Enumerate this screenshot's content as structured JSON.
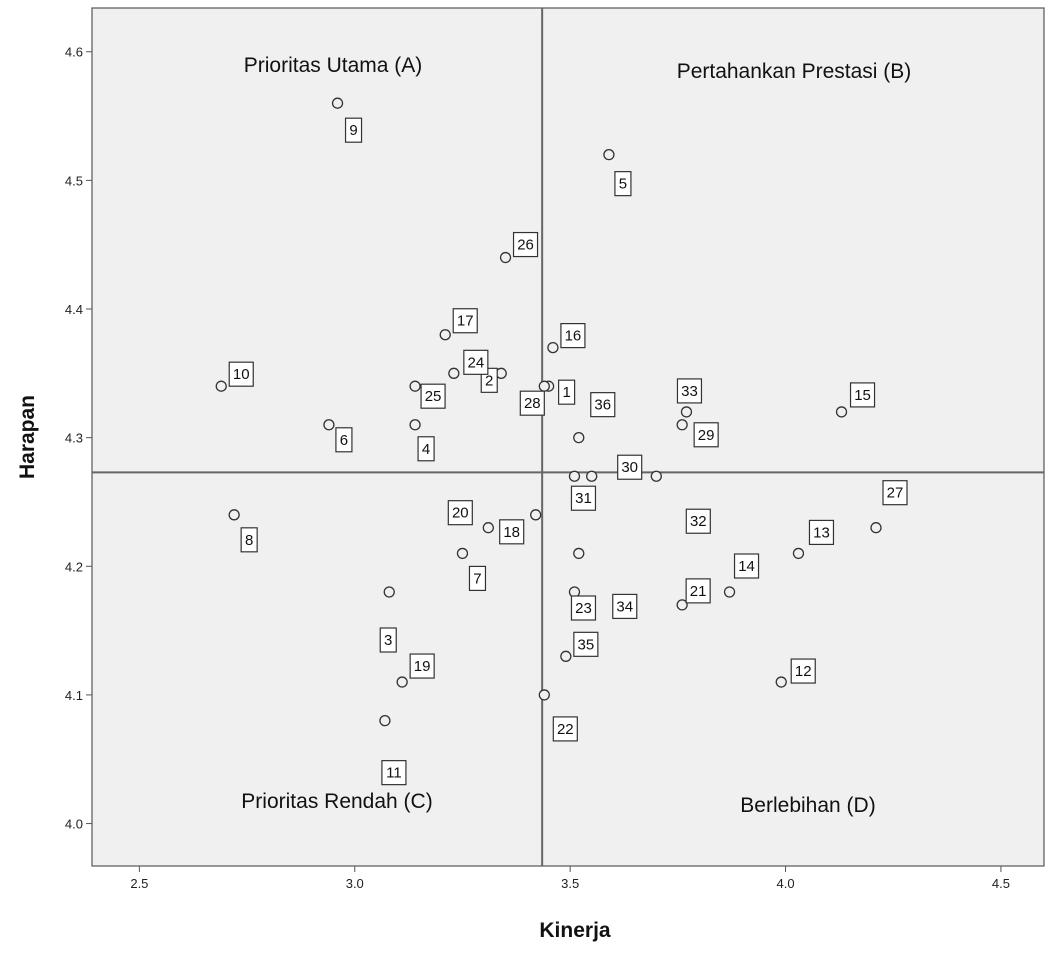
{
  "chart_data": {
    "type": "scatter",
    "xlabel": "Kinerja",
    "ylabel": "Harapan",
    "xlim": [
      2.39,
      4.6
    ],
    "ylim": [
      3.967,
      4.634
    ],
    "xticks": [
      2.5,
      3.0,
      3.5,
      4.0,
      4.5
    ],
    "xtick_labels": [
      "2.5",
      "3.0",
      "3.5",
      "4.0",
      "4.5"
    ],
    "yticks": [
      4.0,
      4.1,
      4.2,
      4.3,
      4.4,
      4.5,
      4.6
    ],
    "ytick_labels": [
      "4.0",
      "4.1",
      "4.2",
      "4.3",
      "4.4",
      "4.5",
      "4.6"
    ],
    "grid": false,
    "reference_lines": {
      "x": 3.435,
      "y": 4.273
    },
    "quadrants": {
      "A": "Prioritas Utama (A)",
      "B": "Pertahankan Prestasi (B)",
      "C": "Prioritas Rendah (C)",
      "D": "Berlebihan (D)"
    },
    "points": [
      {
        "id": "1",
        "x": 3.45,
        "y": 4.34
      },
      {
        "id": "2",
        "x": 3.34,
        "y": 4.35
      },
      {
        "id": "3",
        "x": 3.08,
        "y": 4.18
      },
      {
        "id": "4",
        "x": 3.14,
        "y": 4.31
      },
      {
        "id": "5",
        "x": 3.59,
        "y": 4.52
      },
      {
        "id": "6",
        "x": 2.94,
        "y": 4.31
      },
      {
        "id": "7",
        "x": 3.25,
        "y": 4.21
      },
      {
        "id": "8",
        "x": 2.72,
        "y": 4.24
      },
      {
        "id": "9",
        "x": 2.96,
        "y": 4.56
      },
      {
        "id": "10",
        "x": 2.69,
        "y": 4.34
      },
      {
        "id": "11",
        "x": 3.07,
        "y": 4.08
      },
      {
        "id": "12",
        "x": 3.99,
        "y": 4.11
      },
      {
        "id": "13",
        "x": 4.03,
        "y": 4.21
      },
      {
        "id": "14",
        "x": 3.87,
        "y": 4.18
      },
      {
        "id": "15",
        "x": 4.13,
        "y": 4.32
      },
      {
        "id": "16",
        "x": 3.46,
        "y": 4.37
      },
      {
        "id": "17",
        "x": 3.21,
        "y": 4.38
      },
      {
        "id": "18",
        "x": 3.42,
        "y": 4.24
      },
      {
        "id": "19",
        "x": 3.11,
        "y": 4.11
      },
      {
        "id": "20",
        "x": 3.31,
        "y": 4.23
      },
      {
        "id": "21",
        "x": 3.76,
        "y": 4.17
      },
      {
        "id": "22",
        "x": 3.44,
        "y": 4.1
      },
      {
        "id": "23",
        "x": 3.51,
        "y": 4.18
      },
      {
        "id": "24",
        "x": 3.23,
        "y": 4.35
      },
      {
        "id": "25",
        "x": 3.14,
        "y": 4.34
      },
      {
        "id": "26",
        "x": 3.35,
        "y": 4.44
      },
      {
        "id": "27",
        "x": 4.21,
        "y": 4.23
      },
      {
        "id": "28",
        "x": 3.44,
        "y": 4.34
      },
      {
        "id": "29",
        "x": 3.76,
        "y": 4.31
      },
      {
        "id": "30",
        "x": 3.55,
        "y": 4.27
      },
      {
        "id": "31",
        "x": 3.51,
        "y": 4.27
      },
      {
        "id": "32",
        "x": 3.7,
        "y": 4.27
      },
      {
        "id": "33",
        "x": 3.77,
        "y": 4.32
      },
      {
        "id": "34",
        "x": 3.52,
        "y": 4.21
      },
      {
        "id": "35",
        "x": 3.49,
        "y": 4.13
      },
      {
        "id": "36",
        "x": 3.52,
        "y": 4.3
      }
    ]
  }
}
